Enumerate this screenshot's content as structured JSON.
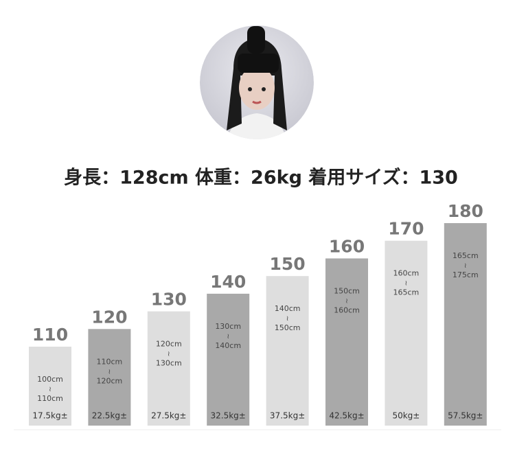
{
  "caption": "身長：128cm  体重：26kg  着用サイズ：130",
  "chart_data": {
    "type": "bar",
    "values": [
      110,
      120,
      130,
      140,
      150,
      160,
      170,
      180
    ],
    "height_ranges": [
      [
        "100cm",
        "110cm"
      ],
      [
        "110cm",
        "120cm"
      ],
      [
        "120cm",
        "130cm"
      ],
      [
        "130cm",
        "140cm"
      ],
      [
        "140cm",
        "150cm"
      ],
      [
        "150cm",
        "160cm"
      ],
      [
        "160cm",
        "165cm"
      ],
      [
        "165cm",
        "175cm"
      ]
    ],
    "range_separator": "≀",
    "weights": [
      "17.5kg±",
      "22.5kg±",
      "27.5kg±",
      "32.5kg±",
      "37.5kg±",
      "42.5kg±",
      "50kg±",
      "57.5kg±"
    ],
    "colors": [
      "#dedede",
      "#a9a9a9",
      "#dedede",
      "#a9a9a9",
      "#dedede",
      "#a9a9a9",
      "#dedede",
      "#a9a9a9"
    ]
  }
}
